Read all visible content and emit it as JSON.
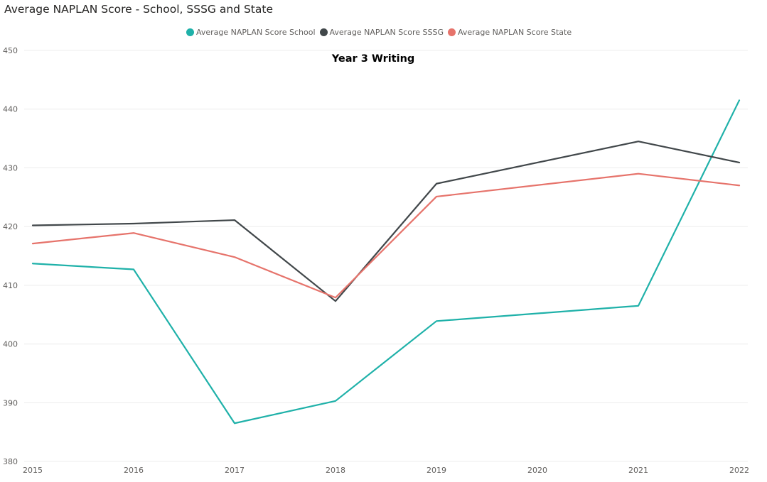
{
  "chart_data": {
    "type": "line",
    "title": "Average NAPLAN Score - School, SSSG and State",
    "subtitle": "Year 3 Writing",
    "xlabel": "",
    "ylabel": "",
    "x": [
      "2015",
      "2016",
      "2017",
      "2018",
      "2019",
      "2020",
      "2021",
      "2022"
    ],
    "ylim": [
      380,
      450
    ],
    "yticks": [
      380,
      390,
      400,
      410,
      420,
      430,
      440,
      450
    ],
    "grid": true,
    "legend_position": "top",
    "series": [
      {
        "name": "Average NAPLAN Score School",
        "color": "#1fb1a9",
        "values": [
          413.7,
          412.7,
          386.5,
          390.3,
          403.9,
          null,
          406.5,
          441.5
        ]
      },
      {
        "name": "Average NAPLAN Score SSSG",
        "color": "#41474a",
        "values": [
          420.2,
          420.5,
          421.1,
          407.3,
          427.3,
          null,
          434.5,
          430.9
        ]
      },
      {
        "name": "Average NAPLAN Score State",
        "color": "#e6736b",
        "values": [
          417.1,
          418.9,
          414.8,
          407.9,
          425.1,
          null,
          429.0,
          427.0
        ]
      }
    ]
  }
}
